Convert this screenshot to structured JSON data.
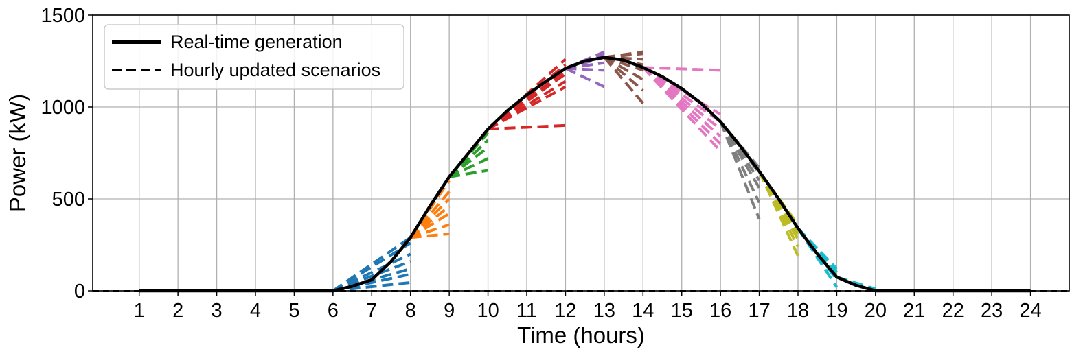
{
  "chart_data": {
    "type": "line",
    "title": "",
    "xlabel": "Time (hours)",
    "ylabel": "Power (kW)",
    "xlim": [
      -0.2,
      25
    ],
    "ylim": [
      0,
      1500
    ],
    "xticks": [
      1,
      2,
      3,
      4,
      5,
      6,
      7,
      8,
      9,
      10,
      11,
      12,
      13,
      14,
      15,
      16,
      17,
      18,
      19,
      20,
      21,
      22,
      23,
      24
    ],
    "yticks": [
      0,
      500,
      1000,
      1500
    ],
    "grid": true,
    "legend": {
      "placement": "top-left",
      "entries": [
        {
          "label": "Real-time generation",
          "style": "solid"
        },
        {
          "label": "Hourly updated scenarios",
          "style": "dashed"
        }
      ]
    },
    "real_time_generation": {
      "name": "Real-time generation",
      "color": "#000000",
      "x": [
        1,
        2,
        3,
        4,
        5,
        6,
        6.5,
        7,
        7.5,
        8,
        8.5,
        9,
        9.5,
        10,
        10.5,
        11,
        11.5,
        12,
        12.5,
        13,
        13.5,
        14,
        14.5,
        15,
        15.5,
        16,
        16.5,
        17,
        17.5,
        18,
        18.5,
        19,
        19.5,
        20,
        21,
        22,
        23,
        24
      ],
      "y": [
        0,
        0,
        0,
        0,
        0,
        0,
        25,
        60,
        160,
        290,
        460,
        620,
        750,
        880,
        980,
        1065,
        1140,
        1210,
        1250,
        1270,
        1255,
        1215,
        1165,
        1100,
        1020,
        920,
        790,
        650,
        500,
        340,
        200,
        75,
        30,
        0,
        0,
        0,
        0,
        0
      ]
    },
    "scenarios": [
      {
        "hour": 6,
        "color": "#1f77b4",
        "x0": 6,
        "y0": 0,
        "end_x": 8,
        "end_y": [
          45,
          90,
          120,
          160,
          200,
          260,
          290
        ]
      },
      {
        "hour": 8,
        "color": "#ff7f0e",
        "x0": 8,
        "y0": 290,
        "end_x": 9,
        "end_y": [
          310,
          360,
          420,
          460,
          500,
          540,
          600
        ]
      },
      {
        "hour": 9,
        "color": "#2ca02c",
        "x0": 9,
        "y0": 620,
        "end_x": 10,
        "end_y": [
          655,
          720,
          780,
          820,
          860,
          870
        ]
      },
      {
        "hour": 10,
        "color": "#d62728",
        "x0": 10,
        "y0": 880,
        "end_x": 12,
        "end_y": [
          900,
          1110,
          1140,
          1180,
          1200,
          1230,
          1260
        ]
      },
      {
        "hour": 12,
        "color": "#9467bd",
        "x0": 12,
        "y0": 1210,
        "end_x": 13,
        "end_y": [
          1110,
          1200,
          1240,
          1270,
          1290,
          1300
        ]
      },
      {
        "hour": 13,
        "color": "#8c564b",
        "x0": 13,
        "y0": 1270,
        "end_x": 14,
        "end_y": [
          1020,
          1090,
          1150,
          1200,
          1230,
          1260,
          1290,
          1300
        ]
      },
      {
        "hour": 14,
        "color": "#e377c2",
        "x0": 14,
        "y0": 1215,
        "end_x": 16,
        "end_y": [
          760,
          800,
          840,
          880,
          920,
          960,
          1200
        ]
      },
      {
        "hour": 16,
        "color": "#7f7f7f",
        "x0": 16,
        "y0": 920,
        "end_x": 17,
        "end_y": [
          390,
          480,
          560,
          600,
          640,
          670
        ]
      },
      {
        "hour": 17,
        "color": "#bcbd22",
        "x0": 17,
        "y0": 650,
        "end_x": 18,
        "end_y": [
          190,
          240,
          280,
          310,
          340,
          360
        ]
      },
      {
        "hour": 18,
        "color": "#17becf",
        "x0": 18,
        "y0": 340,
        "end_x": 19,
        "end_y": [
          20,
          60,
          80,
          100,
          120
        ]
      },
      {
        "hour": 19,
        "color": "#17becf",
        "x0": 19,
        "y0": 75,
        "end_x": 20,
        "end_y": [
          0,
          5,
          10
        ]
      },
      {
        "hour": 0,
        "color": "#000000",
        "x0": -0.2,
        "y0": 0,
        "end_x": 25,
        "end_y": [
          0
        ]
      }
    ]
  }
}
